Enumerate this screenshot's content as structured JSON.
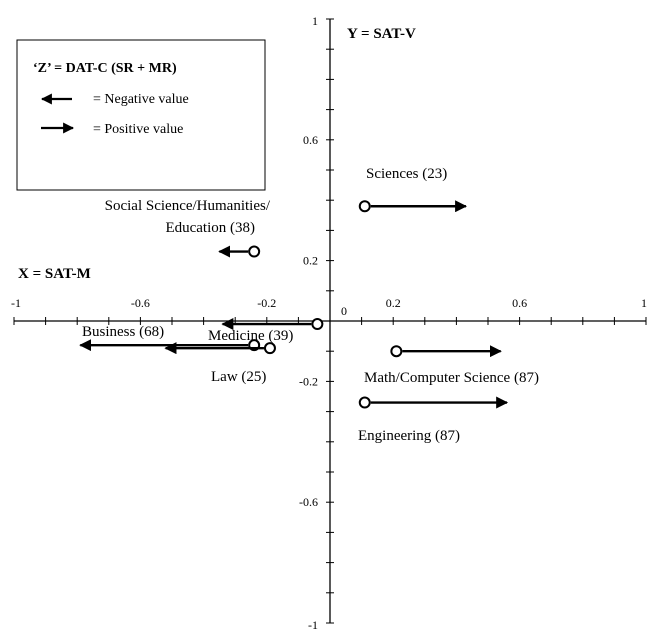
{
  "chart_data": {
    "type": "scatter",
    "subtype": "arrow-vector plot",
    "x_axis_label": "X = SAT-M",
    "y_axis_label": "Y = SAT-V",
    "xlim": [
      -1,
      1
    ],
    "ylim": [
      -1,
      1
    ],
    "x_ticks": [
      {
        "value": -1,
        "label": "-1"
      },
      {
        "value": -0.6,
        "label": "-0.6"
      },
      {
        "value": -0.2,
        "label": "-0.2"
      },
      {
        "value": 0,
        "label": "0"
      },
      {
        "value": 0.2,
        "label": "0.2"
      },
      {
        "value": 0.6,
        "label": "0.6"
      },
      {
        "value": 1,
        "label": "1"
      }
    ],
    "y_ticks": [
      {
        "value": 1,
        "label": "1"
      },
      {
        "value": 0.6,
        "label": "0.6"
      },
      {
        "value": 0.2,
        "label": "0.2"
      },
      {
        "value": -0.2,
        "label": "-0.2"
      },
      {
        "value": -0.6,
        "label": "-0.6"
      },
      {
        "value": -1,
        "label": "-1"
      }
    ],
    "legend": {
      "title": "‘Z’ = DAT-C (SR + MR)",
      "entries": [
        {
          "direction": "left",
          "label": "= Negative value"
        },
        {
          "direction": "right",
          "label": "= Positive value"
        }
      ],
      "placement": "top-left"
    },
    "points": [
      {
        "label": "Sciences (23)",
        "x": 0.11,
        "y": 0.38,
        "z": 0.32
      },
      {
        "label": "Social Science/Humanities/ Education (38)",
        "x": -0.24,
        "y": 0.23,
        "z": -0.11
      },
      {
        "label": "Medicine (39)",
        "x": -0.04,
        "y": -0.01,
        "z": -0.3
      },
      {
        "label": "Business (68)",
        "x": -0.24,
        "y": -0.08,
        "z": -0.55
      },
      {
        "label": "Law (25)",
        "x": -0.19,
        "y": -0.09,
        "z": -0.33
      },
      {
        "label": "Math/Computer Science (87)",
        "x": 0.21,
        "y": -0.1,
        "z": 0.33
      },
      {
        "label": "Engineering (87)",
        "x": 0.11,
        "y": -0.27,
        "z": 0.45
      }
    ]
  }
}
